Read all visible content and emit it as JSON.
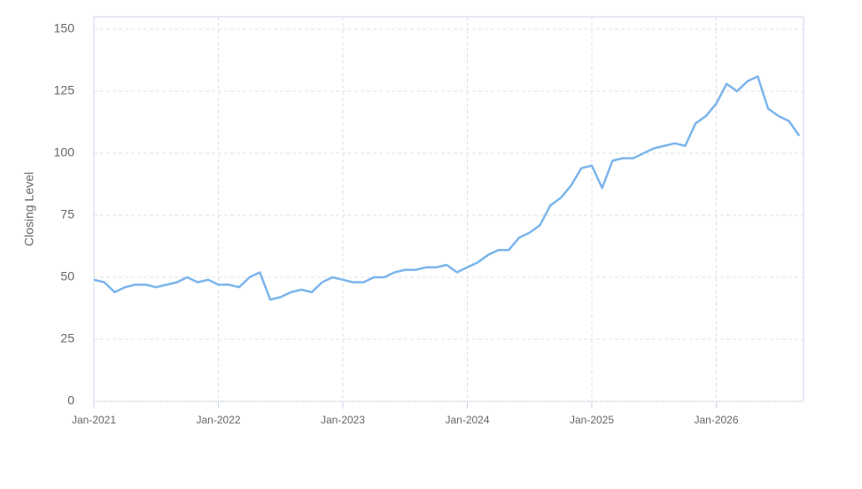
{
  "chart_data": {
    "type": "line",
    "y_label": "Closing Level",
    "x": [
      "Jan-2021",
      "Feb-2021",
      "Mar-2021",
      "Apr-2021",
      "May-2021",
      "Jun-2021",
      "Jul-2021",
      "Aug-2021",
      "Sep-2021",
      "Oct-2021",
      "Nov-2021",
      "Dec-2021",
      "Jan-2022",
      "Feb-2022",
      "Mar-2022",
      "Apr-2022",
      "May-2022",
      "Jun-2022",
      "Jul-2022",
      "Aug-2022",
      "Sep-2022",
      "Oct-2022",
      "Nov-2022",
      "Dec-2022",
      "Jan-2023",
      "Feb-2023",
      "Mar-2023",
      "Apr-2023",
      "May-2023",
      "Jun-2023",
      "Jul-2023",
      "Aug-2023",
      "Sep-2023",
      "Oct-2023",
      "Nov-2023",
      "Dec-2023",
      "Jan-2024",
      "Feb-2024",
      "Mar-2024",
      "Apr-2024",
      "May-2024",
      "Jun-2024",
      "Jul-2024",
      "Aug-2024",
      "Sep-2024",
      "Oct-2024",
      "Nov-2024",
      "Dec-2024",
      "Jan-2025",
      "Feb-2025",
      "Mar-2025",
      "Apr-2025",
      "May-2025",
      "Jun-2025",
      "Jul-2025",
      "Aug-2025",
      "Sep-2025",
      "Oct-2025",
      "Nov-2025",
      "Dec-2025",
      "Jan-2026",
      "Feb-2026",
      "Mar-2026",
      "Apr-2026",
      "May-2026",
      "Jun-2026",
      "Jul-2026",
      "Aug-2026",
      "Sep-2026"
    ],
    "series": [
      {
        "color": "#7cb5ec",
        "values": [
          49,
          48,
          44,
          46,
          47,
          47,
          46,
          47,
          48,
          50,
          48,
          49,
          47,
          47,
          46,
          50,
          52,
          41,
          42,
          44,
          45,
          44,
          48,
          50,
          49,
          48,
          48,
          50,
          50,
          52,
          53,
          53,
          54,
          54,
          55,
          52,
          54,
          56,
          59,
          61,
          61,
          66,
          68,
          71,
          79,
          82,
          87,
          94,
          95,
          86,
          97,
          98,
          98,
          100,
          102,
          103,
          104,
          103,
          112,
          115,
          120,
          128,
          125,
          129,
          131,
          118,
          115,
          113,
          107
        ]
      }
    ],
    "xticks": [
      "Jan-2021",
      "Jan-2022",
      "Jan-2023",
      "Jan-2024",
      "Jan-2025",
      "Jan-2026"
    ],
    "ylim": [
      0,
      150
    ],
    "yticks": [
      0,
      25,
      50,
      75,
      100,
      125,
      150
    ],
    "grid": true
  }
}
